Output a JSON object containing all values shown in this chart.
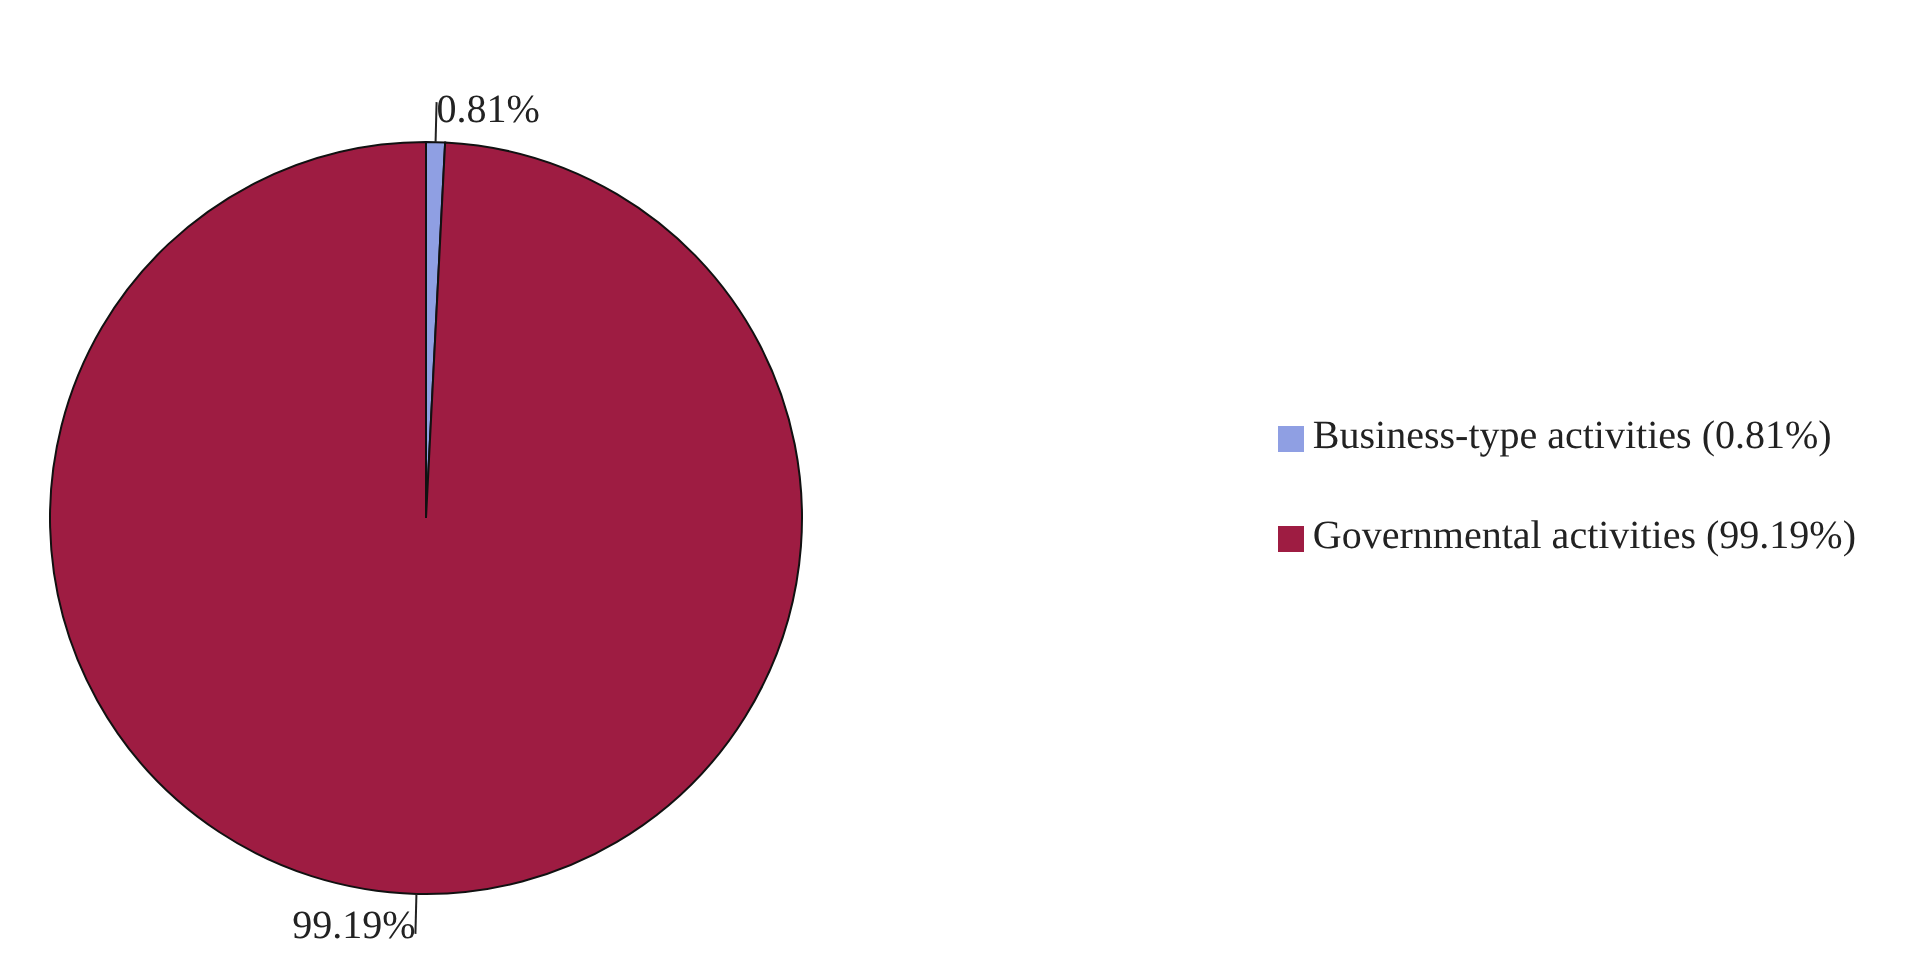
{
  "chart_data": {
    "type": "pie",
    "categories": [
      "Business-type activities (0.81%)",
      "Governmental activities (99.19%)"
    ],
    "values": [
      0.81,
      99.19
    ],
    "colors": [
      "#8f9fe3",
      "#9e1c42"
    ],
    "value_labels": [
      "0.81%",
      "99.19%"
    ],
    "legend": "right"
  }
}
